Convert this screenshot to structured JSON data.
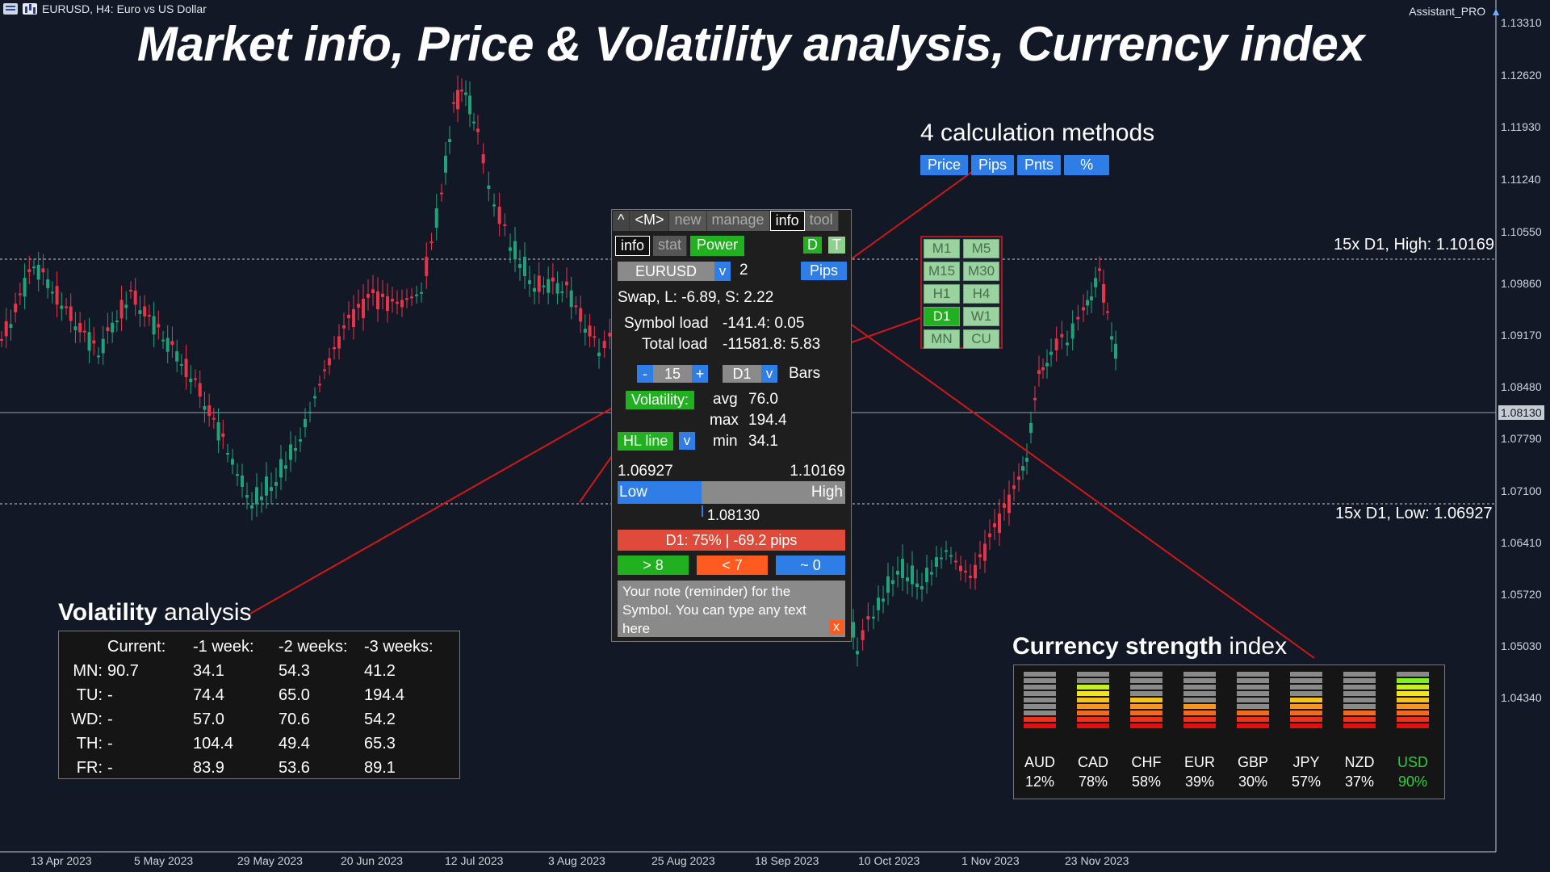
{
  "window": {
    "symbol_title": "EURUSD, H4:  Euro vs US Dollar",
    "assistant": "Assistant_PRO"
  },
  "headline": "Market info, Price & Volatility analysis, Currency index",
  "price_axis": [
    "1.13310",
    "1.12620",
    "1.11930",
    "1.11240",
    "1.10550",
    "1.09860",
    "1.09170",
    "1.08480",
    "1.07790",
    "1.07100",
    "1.06410",
    "1.05720",
    "1.05030",
    "1.04340"
  ],
  "current_price_tag": "1.08130",
  "date_axis": [
    "13 Apr 2023",
    "5 May 2023",
    "29 May 2023",
    "20 Jun 2023",
    "12 Jul 2023",
    "3 Aug 2023",
    "25 Aug 2023",
    "18 Sep 2023",
    "10 Oct 2023",
    "1 Nov 2023",
    "23 Nov 2023"
  ],
  "levels": {
    "high_label": "15x D1, High: 1.10169",
    "low_label": "15x D1, Low: 1.06927"
  },
  "calc_methods": {
    "title": "4 calculation methods",
    "buttons": [
      "Price",
      "Pips",
      "Pnts",
      "%"
    ]
  },
  "timeframes": [
    "M1",
    "M5",
    "M15",
    "M30",
    "H1",
    "H4",
    "D1",
    "W1",
    "MN",
    "CU"
  ],
  "panel": {
    "tabs_top": [
      "^",
      "<M>",
      "new",
      "manage",
      "info",
      "tool"
    ],
    "tabs_sub": [
      "info",
      "stat"
    ],
    "power": "Power",
    "d": "D",
    "t": "T",
    "symbol": "EURUSD",
    "v": "v",
    "digits": "2",
    "pips": "Pips",
    "swap": "Swap, L: -6.89, S: 2.22",
    "symbol_load_label": "Symbol load",
    "symbol_load_val": "-141.4: 0.05",
    "total_load_label": "Total load",
    "total_load_val": "-11581.8: 5.83",
    "minus": "-",
    "bars_count": "15",
    "plus": "+",
    "tf": "D1",
    "bars": "Bars",
    "volatility": "Volatility:",
    "avg_label": "avg",
    "avg_val": "76.0",
    "max_label": "max",
    "max_val": "194.4",
    "min_label": "min",
    "min_val": "34.1",
    "hl_line": "HL line",
    "low_price": "1.06927",
    "high_price": "1.10169",
    "low": "Low",
    "high": "High",
    "cur_price": "1.08130",
    "position_fraction": 0.37,
    "d1_status": "D1: 75%   |   -69.2 pips",
    "gt": "> 8",
    "lt": "< 7",
    "approx": "~ 0",
    "note": "Your note (reminder) for the Symbol. You can type any text here",
    "close": "x"
  },
  "volatility_analysis": {
    "title_bold": "Volatility",
    "title_rest": " analysis",
    "headers": [
      "",
      "Current:",
      "-1 week:",
      "-2 weeks:",
      "-3 weeks:"
    ],
    "rows": [
      [
        "MN:",
        "90.7",
        "34.1",
        "54.3",
        "41.2"
      ],
      [
        "TU:",
        "-",
        "74.4",
        "65.0",
        "194.4"
      ],
      [
        "WD:",
        "-",
        "57.0",
        "70.6",
        "54.2"
      ],
      [
        "TH:",
        "-",
        "104.4",
        "49.4",
        "65.3"
      ],
      [
        "FR:",
        "-",
        "83.9",
        "53.6",
        "89.1"
      ]
    ]
  },
  "currency_strength": {
    "title_bold": "Currency strength",
    "title_rest": " index",
    "currencies": [
      {
        "name": "AUD",
        "pct": "12%",
        "value": 0.12
      },
      {
        "name": "CAD",
        "pct": "78%",
        "value": 0.78
      },
      {
        "name": "CHF",
        "pct": "58%",
        "value": 0.58
      },
      {
        "name": "EUR",
        "pct": "39%",
        "value": 0.39
      },
      {
        "name": "GBP",
        "pct": "30%",
        "value": 0.3
      },
      {
        "name": "JPY",
        "pct": "57%",
        "value": 0.57
      },
      {
        "name": "NZD",
        "pct": "37%",
        "value": 0.37
      },
      {
        "name": "USD",
        "pct": "90%",
        "value": 0.9
      }
    ],
    "highlight_color": "#2ecc40"
  },
  "colors": {
    "bull": "#1fa37a",
    "bear": "#e8344a",
    "accent_red": "#d01818",
    "blue": "#2f7ee8",
    "green": "#20b020"
  }
}
